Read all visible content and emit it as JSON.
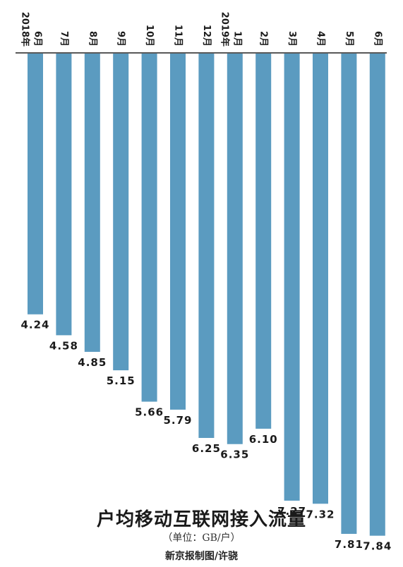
{
  "chart_data": {
    "type": "bar",
    "orientation": "vertical-downward",
    "categories": [
      "6月",
      "7月",
      "8月",
      "9月",
      "10月",
      "11月",
      "12月",
      "1月",
      "2月",
      "3月",
      "4月",
      "5月",
      "6月"
    ],
    "year_labels": [
      "2018年",
      "",
      "",
      "",
      "",
      "",
      "",
      "2019年",
      "",
      "",
      "",
      "",
      ""
    ],
    "values": [
      4.24,
      4.58,
      4.85,
      5.15,
      5.66,
      5.79,
      6.25,
      6.35,
      6.1,
      7.27,
      7.32,
      7.81,
      7.84
    ],
    "value_labels": [
      "4.24",
      "4.58",
      "4.85",
      "5.15",
      "5.66",
      "5.79",
      "6.25",
      "6.35",
      "6.10",
      "7.27",
      "7.32",
      "7.81",
      "7.84"
    ],
    "title": "户均移动互联网接入流量",
    "unit": "（单位：GB/户）",
    "ylim": [
      0,
      8
    ],
    "grid": false,
    "legend": "none",
    "bar_color": "#5b9bc0"
  },
  "credit": "新京报制图/许骁"
}
